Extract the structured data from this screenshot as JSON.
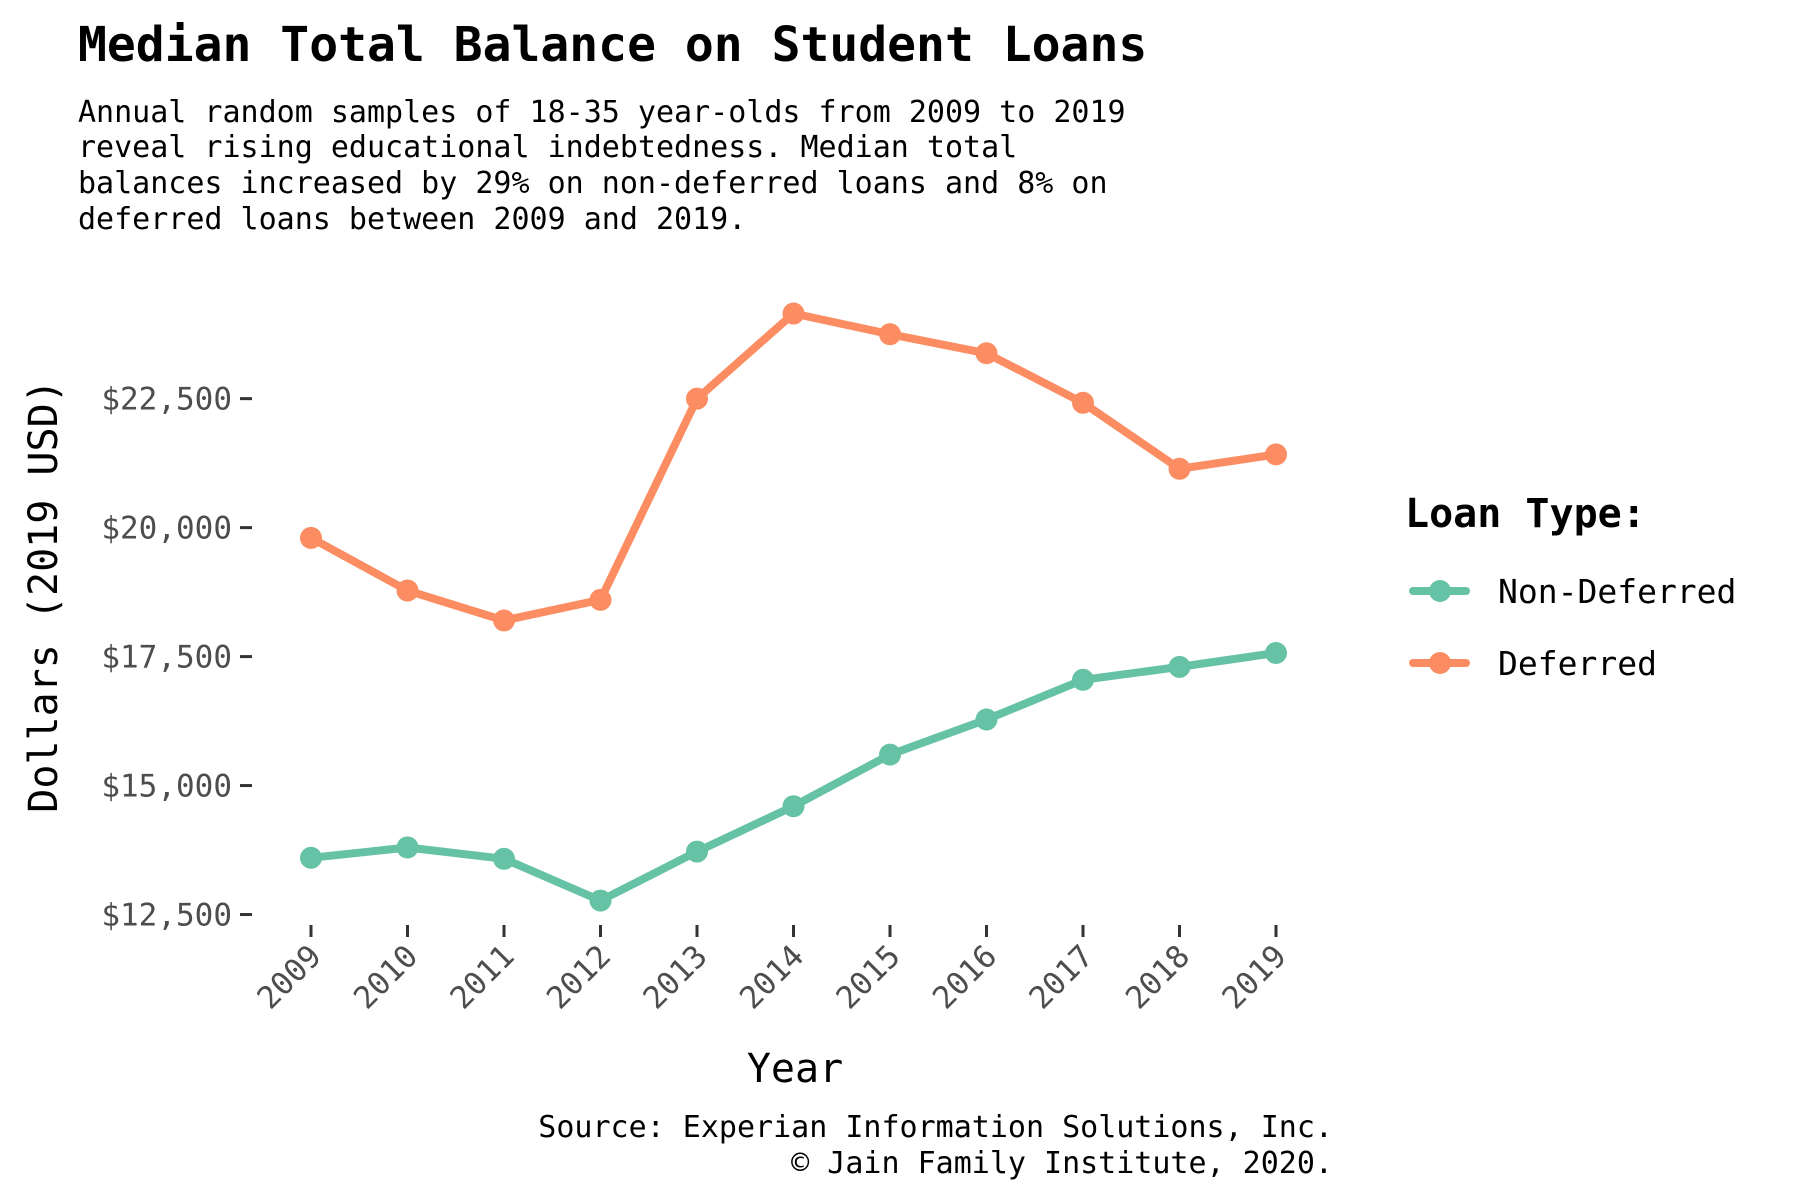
{
  "chart_data": {
    "type": "line",
    "title": "Median Total Balance on Student Loans",
    "subtitle_lines": [
      "Annual random samples of 18-35 year-olds from 2009 to 2019",
      "reveal rising educational indebtedness. Median total",
      "balances increased by 29% on non-deferred loans and 8% on",
      "deferred loans between 2009 and 2019."
    ],
    "xlabel": "Year",
    "ylabel": "Dollars (2019 USD)",
    "x": [
      2009,
      2010,
      2011,
      2012,
      2013,
      2014,
      2015,
      2016,
      2017,
      2018,
      2019
    ],
    "x_tick_labels": [
      "2009",
      "2010",
      "2011",
      "2012",
      "2013",
      "2014",
      "2015",
      "2016",
      "2017",
      "2018",
      "2019"
    ],
    "y_ticks": [
      12500,
      15000,
      17500,
      20000,
      22500
    ],
    "y_tick_labels": [
      "$12,500",
      "$15,000",
      "$17,500",
      "$20,000",
      "$22,500"
    ],
    "ylim": [
      12200,
      24800
    ],
    "grid": false,
    "legend": {
      "title": "Loan Type:",
      "placement": "right"
    },
    "series": [
      {
        "name": "Non-Deferred",
        "color": "#66c2a5",
        "values": [
          13600,
          13800,
          13580,
          12770,
          13720,
          14600,
          15600,
          16280,
          17050,
          17300,
          17570
        ]
      },
      {
        "name": "Deferred",
        "color": "#fc8d62",
        "values": [
          19800,
          18780,
          18200,
          18600,
          22500,
          24150,
          23750,
          23380,
          22420,
          21140,
          21420
        ]
      }
    ],
    "caption_lines": [
      "Source: Experian Information Solutions, Inc.",
      "© Jain Family Institute, 2020."
    ]
  }
}
